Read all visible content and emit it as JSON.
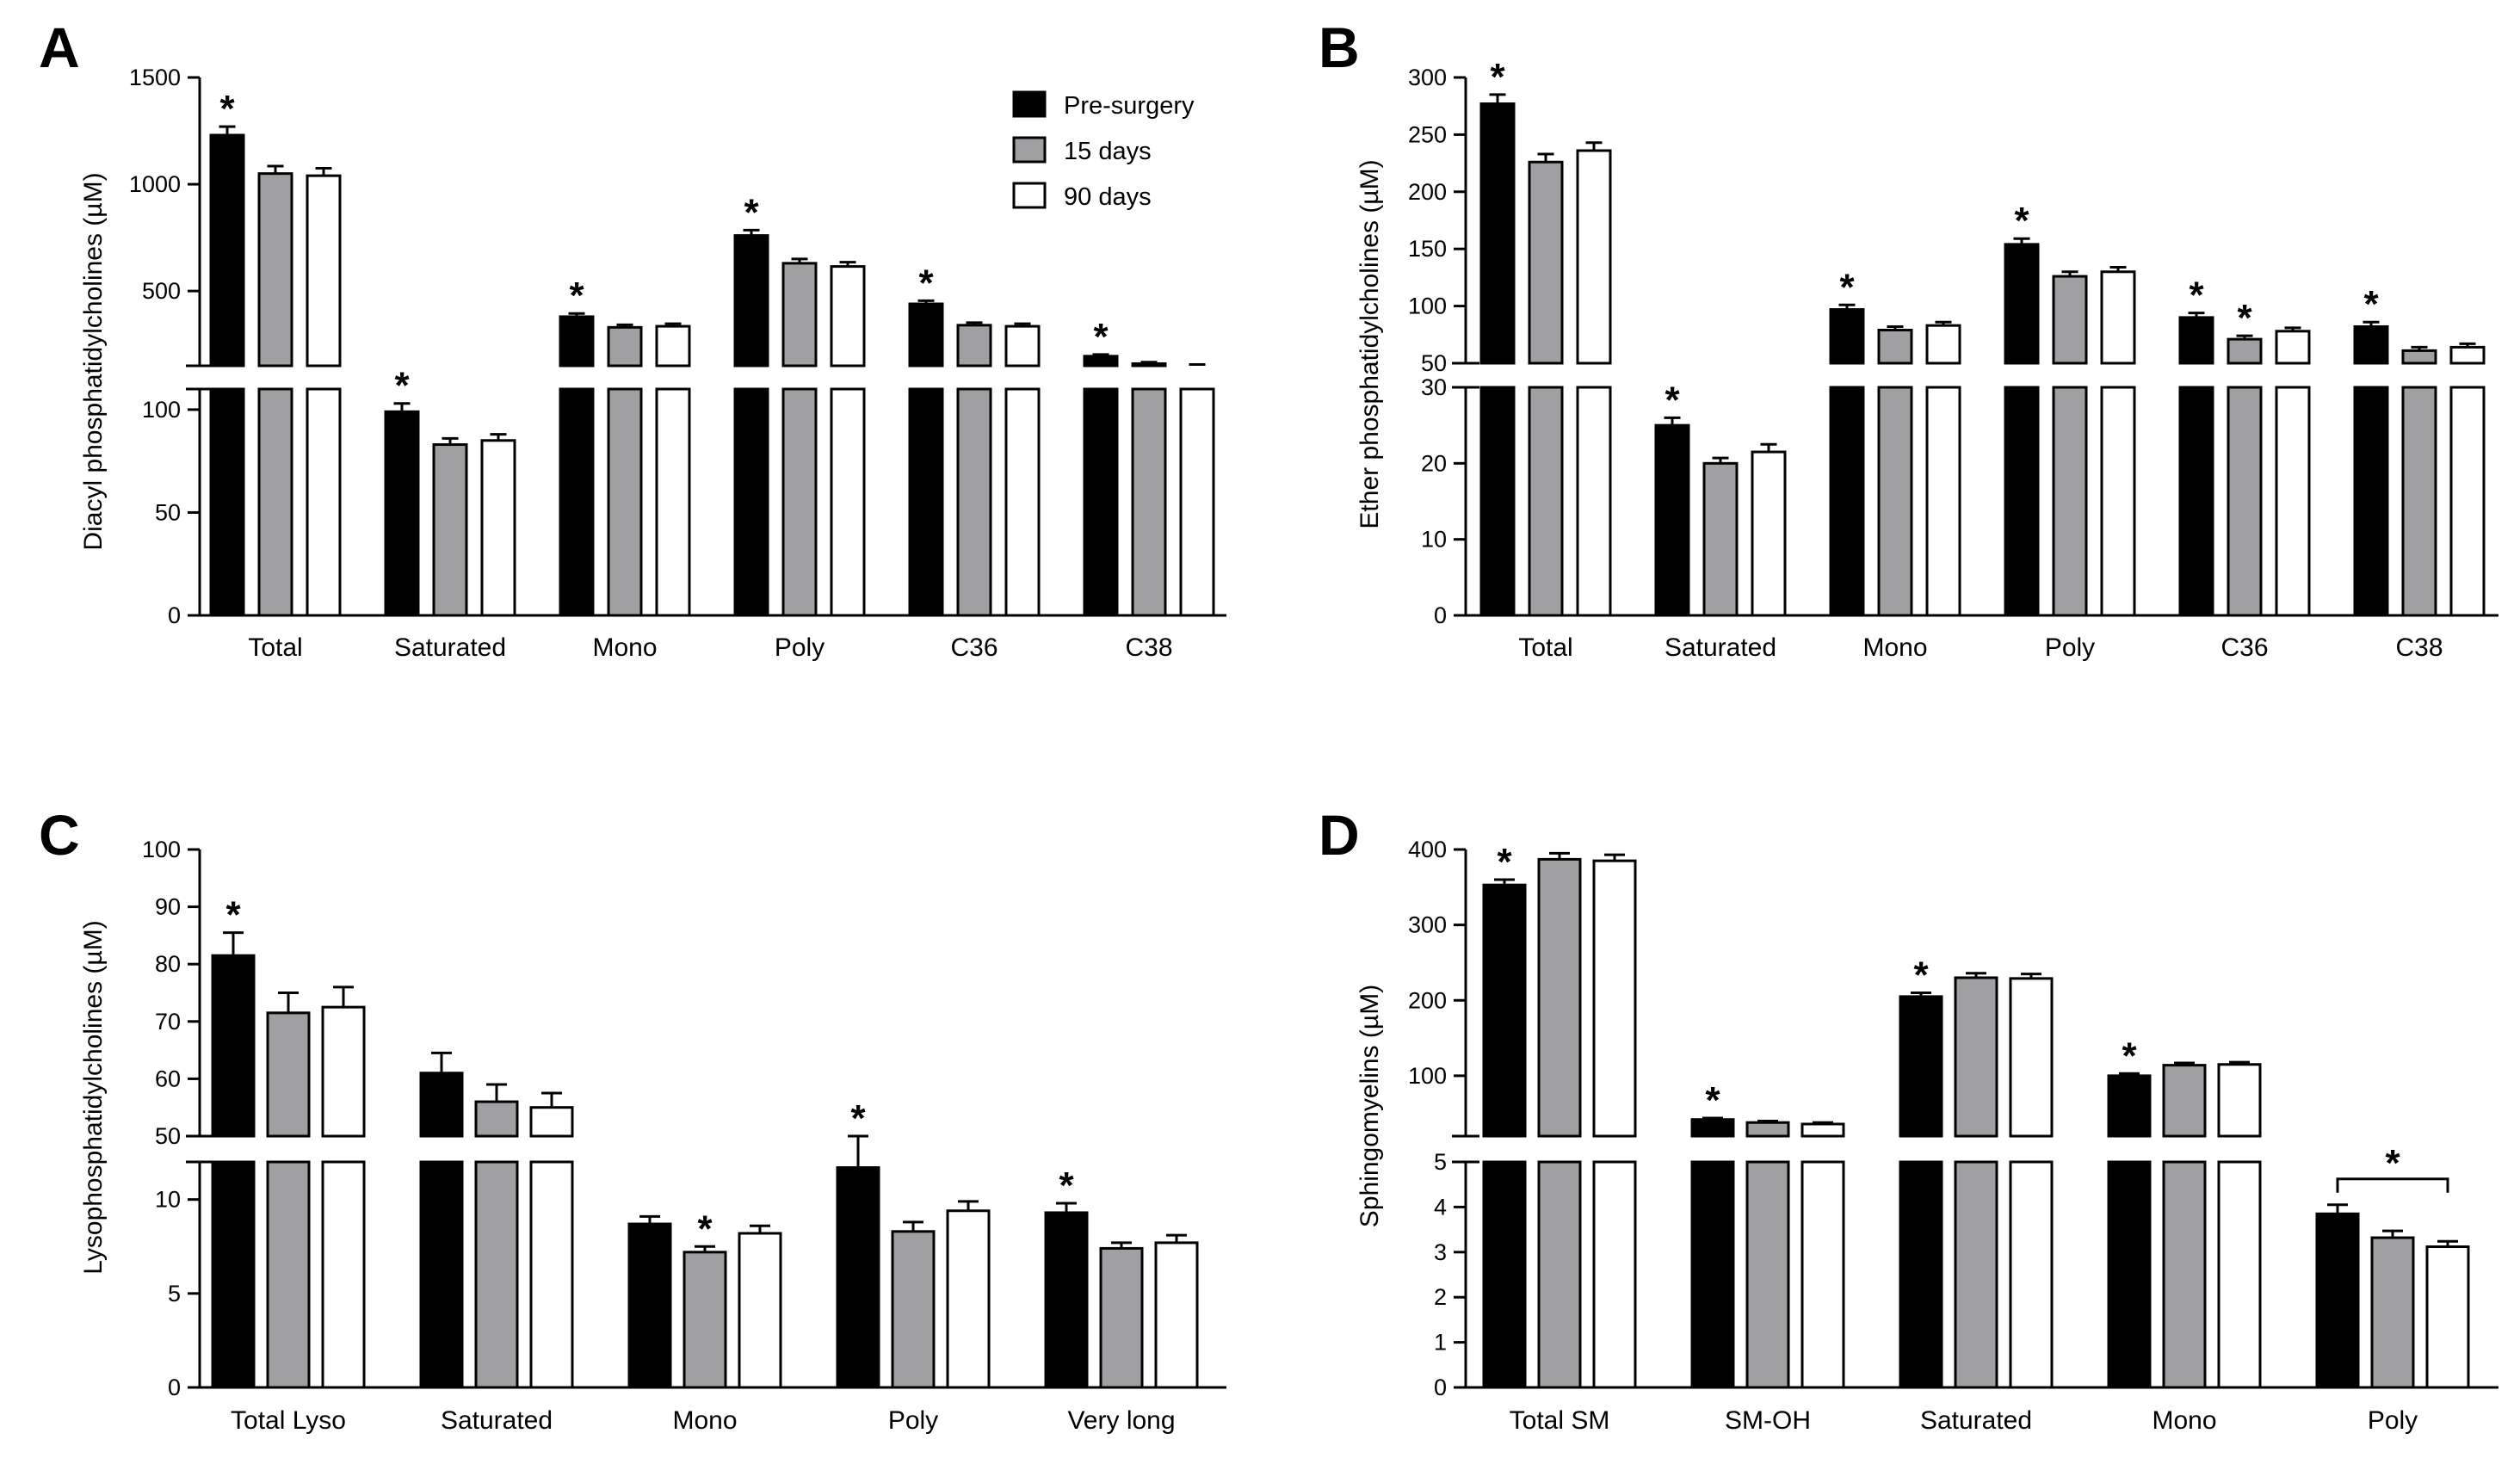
{
  "colors": {
    "pre": "#000000",
    "d15": "#a0a0a3",
    "d90": "#ffffff",
    "stroke": "#000000"
  },
  "legend": {
    "items": [
      {
        "label": "Pre-surgery",
        "color": "#000000"
      },
      {
        "label": "15 days",
        "color": "#a0a0a3"
      },
      {
        "label": "90 days",
        "color": "#ffffff"
      }
    ]
  },
  "chart_data": [
    {
      "panel": "A",
      "type": "bar",
      "ylabel": "Diacyl phosphatidylcholines (µM)",
      "categories": [
        "Total",
        "Saturated",
        "Mono",
        "Poly",
        "C36",
        "C38"
      ],
      "axis_break": {
        "lower": [
          0,
          110
        ],
        "upper": [
          150,
          1500
        ]
      },
      "lower_ticks": [
        0,
        50,
        100
      ],
      "upper_ticks": [
        500,
        1000,
        1500
      ],
      "series": [
        {
          "name": "Pre-surgery",
          "values": [
            1230,
            99,
            380,
            760,
            440,
            195
          ],
          "errors": [
            40,
            4,
            15,
            25,
            15,
            8
          ]
        },
        {
          "name": "15 days",
          "values": [
            1050,
            83,
            330,
            630,
            340,
            160
          ],
          "errors": [
            35,
            3,
            12,
            20,
            12,
            7
          ]
        },
        {
          "name": "90 days",
          "values": [
            1040,
            85,
            335,
            615,
            335,
            150
          ],
          "errors": [
            35,
            3,
            12,
            20,
            12,
            6
          ]
        }
      ],
      "stars": [
        {
          "category": 0,
          "series": 0
        },
        {
          "category": 1,
          "series": 0
        },
        {
          "category": 2,
          "series": 0
        },
        {
          "category": 3,
          "series": 0
        },
        {
          "category": 4,
          "series": 0
        },
        {
          "category": 5,
          "series": 0
        }
      ],
      "star_label": "*"
    },
    {
      "panel": "B",
      "type": "bar",
      "ylabel": "Ether phosphatidylcholines (µM)",
      "categories": [
        "Total",
        "Saturated",
        "Mono",
        "Poly",
        "C36",
        "C38"
      ],
      "axis_break": {
        "lower": [
          0,
          30
        ],
        "upper": [
          50,
          300
        ]
      },
      "lower_ticks": [
        0,
        10,
        20,
        30
      ],
      "upper_ticks": [
        50,
        100,
        150,
        200,
        250,
        300
      ],
      "series": [
        {
          "name": "Pre-surgery",
          "values": [
            277,
            25,
            97,
            154,
            90,
            82
          ],
          "errors": [
            8,
            1,
            4,
            5,
            4,
            4
          ]
        },
        {
          "name": "15 days",
          "values": [
            226,
            20,
            79,
            126,
            71,
            61
          ],
          "errors": [
            7,
            0.7,
            3,
            4,
            3,
            3
          ]
        },
        {
          "name": "90 days",
          "values": [
            236,
            21.5,
            83,
            130,
            78,
            64
          ],
          "errors": [
            7,
            1,
            3,
            4,
            3,
            3
          ]
        }
      ],
      "stars": [
        {
          "category": 0,
          "series": 0
        },
        {
          "category": 1,
          "series": 0
        },
        {
          "category": 2,
          "series": 0
        },
        {
          "category": 3,
          "series": 0
        },
        {
          "category": 4,
          "series": 0
        },
        {
          "category": 4,
          "series": 1
        },
        {
          "category": 5,
          "series": 0
        }
      ],
      "star_label": "*"
    },
    {
      "panel": "C",
      "type": "bar",
      "ylabel": "Lysophosphatidylcholines (µM)",
      "categories": [
        "Total Lyso",
        "Saturated",
        "Mono",
        "Poly",
        "Very long"
      ],
      "axis_break": {
        "lower": [
          0,
          12
        ],
        "upper": [
          50,
          100
        ]
      },
      "lower_ticks": [
        0,
        5,
        10
      ],
      "upper_ticks": [
        50,
        60,
        70,
        80,
        90,
        100
      ],
      "series": [
        {
          "name": "Pre-surgery",
          "values": [
            81.5,
            61,
            8.7,
            11.7,
            9.3
          ],
          "errors": [
            4,
            3.5,
            0.4,
            0.5,
            0.5
          ]
        },
        {
          "name": "15 days",
          "values": [
            71.5,
            56,
            7.2,
            8.3,
            7.4
          ],
          "errors": [
            3.5,
            3,
            0.3,
            0.5,
            0.3
          ]
        },
        {
          "name": "90 days",
          "values": [
            72.5,
            55,
            8.2,
            9.4,
            7.7
          ],
          "errors": [
            3.5,
            2.5,
            0.4,
            0.5,
            0.4
          ]
        }
      ],
      "stars": [
        {
          "category": 0,
          "series": 0
        },
        {
          "category": 2,
          "series": 1
        },
        {
          "category": 3,
          "series": 0
        },
        {
          "category": 4,
          "series": 0
        }
      ],
      "star_label": "*"
    },
    {
      "panel": "D",
      "type": "bar",
      "ylabel": "Sphingomyelins (µM)",
      "categories": [
        "Total SM",
        "SM-OH",
        "Saturated",
        "Mono",
        "Poly"
      ],
      "axis_break": {
        "lower": [
          0,
          5
        ],
        "upper": [
          20,
          400
        ]
      },
      "lower_ticks": [
        0,
        1,
        2,
        3,
        4,
        5
      ],
      "upper_ticks": [
        100,
        200,
        300,
        400
      ],
      "series": [
        {
          "name": "Pre-surgery",
          "values": [
            353,
            42,
            205,
            100,
            3.85
          ],
          "errors": [
            7,
            2,
            5,
            3,
            0.2
          ]
        },
        {
          "name": "15 days",
          "values": [
            387,
            38,
            230,
            114,
            3.32
          ],
          "errors": [
            8,
            2,
            6,
            3,
            0.15
          ]
        },
        {
          "name": "90 days",
          "values": [
            385,
            36,
            229,
            115,
            3.12
          ],
          "errors": [
            8,
            2,
            6,
            3,
            0.12
          ]
        }
      ],
      "stars": [
        {
          "category": 0,
          "series": 0
        },
        {
          "category": 1,
          "series": 0
        },
        {
          "category": 2,
          "series": 0
        },
        {
          "category": 3,
          "series": 0
        }
      ],
      "bracket": {
        "category": 4,
        "label": "*"
      },
      "star_label": "*"
    }
  ]
}
